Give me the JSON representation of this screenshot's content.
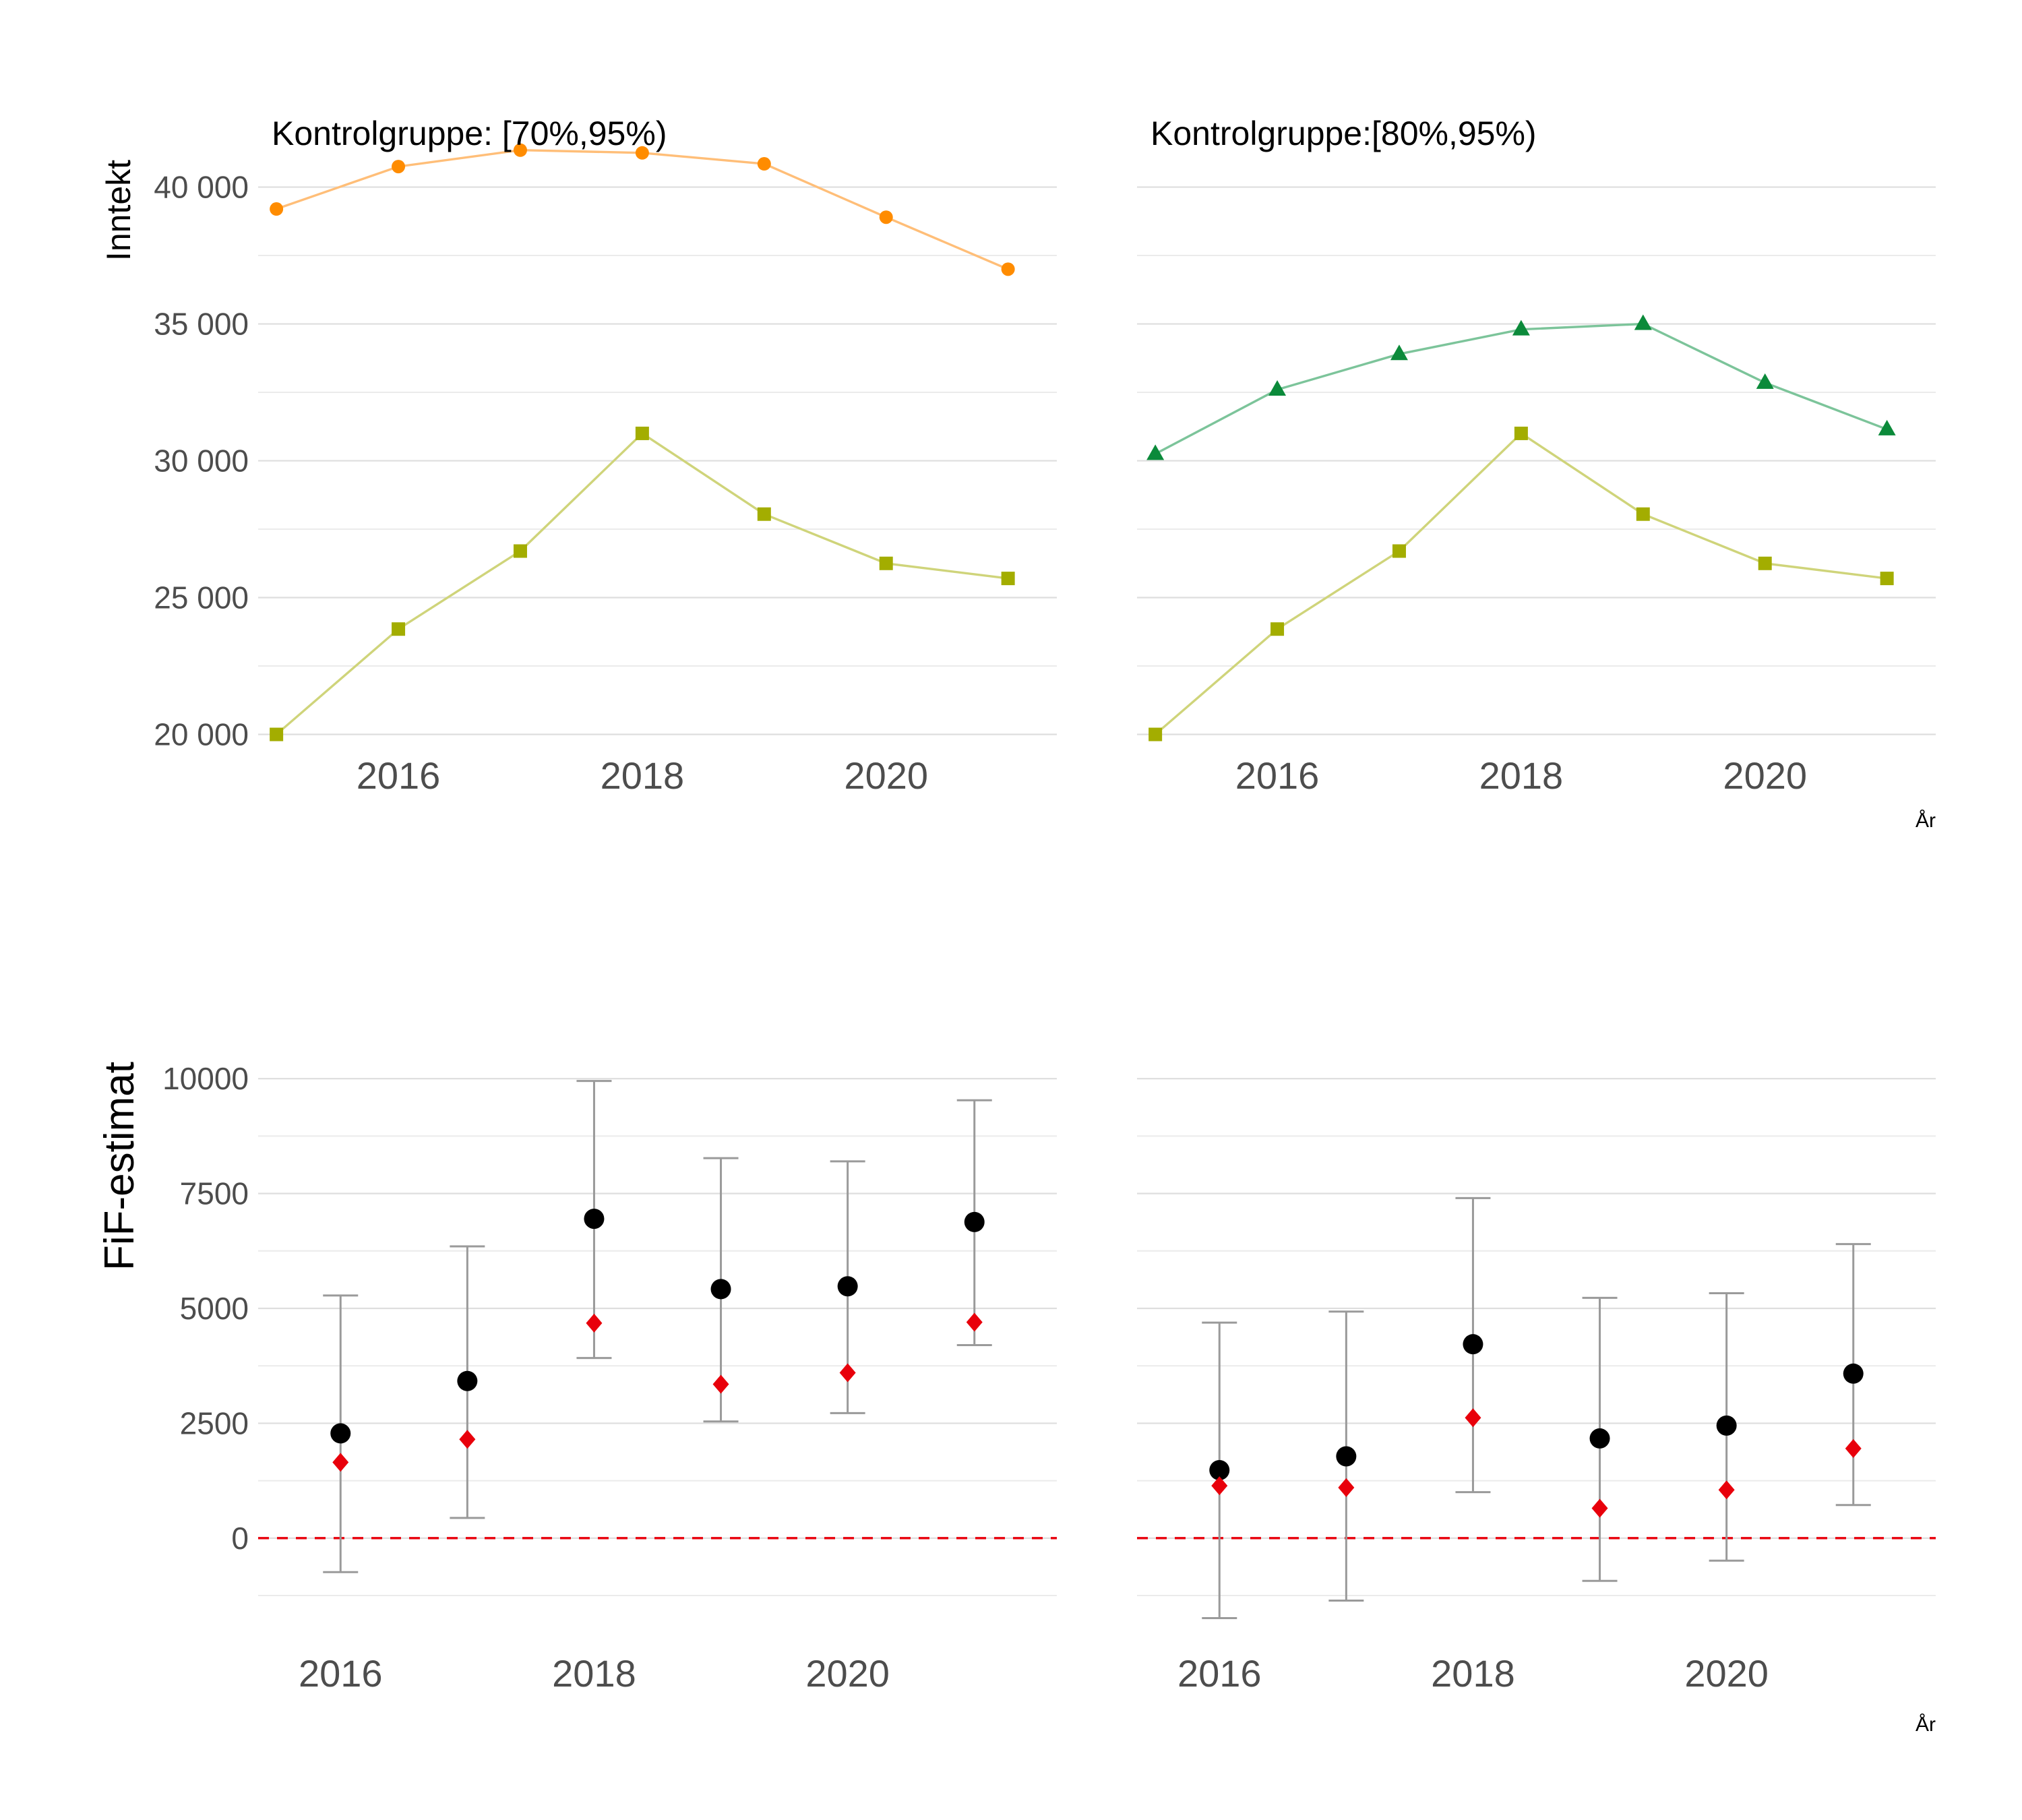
{
  "chart_data": [
    {
      "type": "line",
      "title": "Kontrolgruppe: [70%,95%)",
      "ylabel": "Inntekt",
      "xlabel": "",
      "xlim": [
        2014.85,
        2021.4
      ],
      "ylim": [
        19200,
        42600
      ],
      "x_ticks": [
        2016,
        2018,
        2020
      ],
      "x_tick_labels": [
        "2016",
        "2018",
        "2020"
      ],
      "y_ticks": [
        20000,
        25000,
        30000,
        35000,
        40000
      ],
      "y_tick_labels": [
        "20 000",
        "25 000",
        "30 000",
        "35 000",
        "40 000"
      ],
      "y_minor": [
        22500,
        27500,
        32500,
        37500
      ],
      "grid": true,
      "series": [
        {
          "marker": "circle",
          "color": "#ff8c00",
          "line_color": "#ffbe78",
          "x": [
            2015,
            2016,
            2017,
            2018,
            2019,
            2020,
            2021
          ],
          "values": [
            39200,
            40750,
            41350,
            41250,
            40850,
            38900,
            37000
          ]
        },
        {
          "marker": "square",
          "color": "#a3ad00",
          "line_color": "#cfd47a",
          "x": [
            2015,
            2016,
            2017,
            2018,
            2019,
            2020,
            2021
          ],
          "values": [
            20000,
            23850,
            26700,
            31000,
            28050,
            26250,
            25700
          ]
        }
      ]
    },
    {
      "type": "line",
      "title": "Kontrolgruppe:[80%,95%)",
      "xlabel": "År",
      "xlim": [
        2014.85,
        2021.4
      ],
      "ylim": [
        19200,
        42600
      ],
      "x_ticks": [
        2016,
        2018,
        2020
      ],
      "x_tick_labels": [
        "2016",
        "2018",
        "2020"
      ],
      "y_ticks": [
        20000,
        25000,
        30000,
        35000,
        40000
      ],
      "y_minor": [
        22500,
        27500,
        32500,
        37500
      ],
      "grid": true,
      "series": [
        {
          "marker": "triangle",
          "color": "#0b8a3a",
          "line_color": "#7cc49a",
          "x": [
            2015,
            2016,
            2017,
            2018,
            2019,
            2020,
            2021
          ],
          "values": [
            30250,
            32600,
            33900,
            34800,
            35000,
            32850,
            31150
          ]
        },
        {
          "marker": "square",
          "color": "#a3ad00",
          "line_color": "#cfd47a",
          "x": [
            2015,
            2016,
            2017,
            2018,
            2019,
            2020,
            2021
          ],
          "values": [
            20000,
            23850,
            26700,
            31000,
            28050,
            26250,
            25700
          ]
        }
      ]
    },
    {
      "type": "scatter",
      "ylabel": "FiF-estimat",
      "xlabel": "",
      "xlim": [
        2015.35,
        2021.65
      ],
      "ylim": [
        -2100,
        11000
      ],
      "x_ticks": [
        2016,
        2018,
        2020
      ],
      "x_tick_labels": [
        "2016",
        "2018",
        "2020"
      ],
      "y_ticks": [
        0,
        2500,
        5000,
        7500,
        10000
      ],
      "y_tick_labels": [
        "0",
        "2500",
        "5000",
        "7500",
        "10000"
      ],
      "y_minor": [
        -1250,
        1250,
        3750,
        6250,
        8750
      ],
      "grid": true,
      "reference_line": {
        "y": 0,
        "color": "#e8000b",
        "style": "dashed"
      },
      "series": [
        {
          "marker": "circle",
          "color": "#000000",
          "x": [
            2016,
            2017,
            2018,
            2019,
            2020,
            2021
          ],
          "values": [
            2280,
            3420,
            6950,
            5420,
            5480,
            6880
          ],
          "ci_low": [
            -740,
            440,
            3920,
            2540,
            2720,
            4200
          ],
          "ci_high": [
            5280,
            6350,
            9950,
            8270,
            8200,
            9530
          ]
        },
        {
          "marker": "diamond",
          "color": "#e8000b",
          "x": [
            2016,
            2017,
            2018,
            2019,
            2020,
            2021
          ],
          "values": [
            1650,
            2150,
            4680,
            3350,
            3600,
            4700
          ]
        }
      ]
    },
    {
      "type": "scatter",
      "xlabel": "År",
      "xlim": [
        2015.35,
        2021.65
      ],
      "ylim": [
        -2100,
        11000
      ],
      "x_ticks": [
        2016,
        2018,
        2020
      ],
      "x_tick_labels": [
        "2016",
        "2018",
        "2020"
      ],
      "y_ticks": [
        0,
        2500,
        5000,
        7500,
        10000
      ],
      "y_minor": [
        -1250,
        1250,
        3750,
        6250,
        8750
      ],
      "grid": true,
      "reference_line": {
        "y": 0,
        "color": "#e8000b",
        "style": "dashed"
      },
      "series": [
        {
          "marker": "circle",
          "color": "#000000",
          "x": [
            2016,
            2017,
            2018,
            2019,
            2020,
            2021
          ],
          "values": [
            1480,
            1780,
            4220,
            2170,
            2450,
            3580
          ],
          "ci_low": [
            -1740,
            -1360,
            1000,
            -930,
            -490,
            720
          ],
          "ci_high": [
            4690,
            4930,
            7400,
            5230,
            5330,
            6400
          ]
        },
        {
          "marker": "diamond",
          "color": "#e8000b",
          "x": [
            2016,
            2017,
            2018,
            2019,
            2020,
            2021
          ],
          "values": [
            1140,
            1100,
            2620,
            650,
            1050,
            1950
          ]
        }
      ]
    }
  ]
}
